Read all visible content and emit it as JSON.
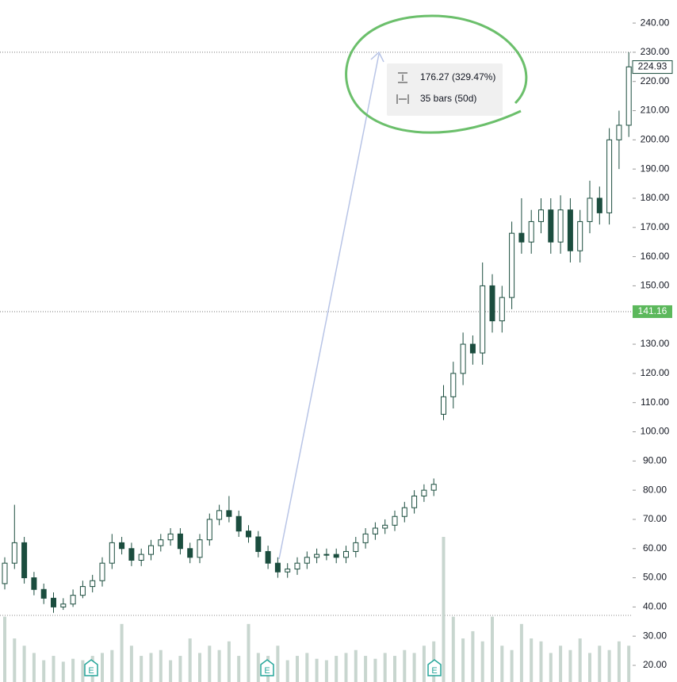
{
  "chart_data": {
    "type": "candlestick",
    "open": [
      48,
      55,
      62,
      50,
      46,
      43,
      40,
      41,
      44,
      47,
      49,
      55,
      62,
      60,
      56,
      58,
      61,
      63,
      65,
      60,
      57,
      63,
      70,
      73,
      71,
      66,
      64,
      59,
      55,
      52,
      53,
      55,
      57,
      58,
      58,
      57,
      59,
      62,
      65,
      67,
      68,
      71,
      74,
      78,
      80,
      106,
      112,
      120,
      130,
      127,
      150,
      138,
      146,
      168,
      165,
      172,
      176,
      165,
      176,
      162,
      172,
      180,
      175,
      200,
      205
    ],
    "high": [
      57,
      75,
      64,
      52,
      48,
      45,
      43,
      46,
      49,
      51,
      57,
      65,
      64,
      62,
      60,
      63,
      65,
      67,
      67,
      62,
      65,
      72,
      75,
      78,
      73,
      68,
      66,
      61,
      57,
      55,
      57,
      59,
      60,
      60,
      60,
      61,
      64,
      67,
      69,
      70,
      73,
      76,
      80,
      82,
      84,
      116,
      124,
      134,
      133,
      158,
      154,
      150,
      172,
      180,
      176,
      180,
      180,
      181,
      180,
      176,
      186,
      184,
      204,
      210,
      230
    ],
    "low": [
      46,
      53,
      48,
      44,
      41,
      38,
      39,
      40,
      43,
      45,
      47,
      53,
      58,
      54,
      54,
      56,
      59,
      61,
      58,
      55,
      55,
      61,
      68,
      69,
      64,
      62,
      57,
      53,
      50,
      50,
      51,
      53,
      55,
      56,
      55,
      55,
      57,
      60,
      63,
      65,
      66,
      69,
      72,
      76,
      78,
      104,
      108,
      116,
      123,
      123,
      134,
      134,
      142,
      161,
      161,
      168,
      161,
      161,
      158,
      158,
      168,
      171,
      171,
      190,
      201
    ],
    "close": [
      55,
      62,
      50,
      46,
      43,
      40,
      41,
      44,
      47,
      49,
      55,
      62,
      60,
      56,
      58,
      61,
      63,
      65,
      60,
      57,
      63,
      70,
      73,
      71,
      66,
      64,
      59,
      55,
      52,
      53,
      55,
      57,
      58,
      58,
      57,
      59,
      62,
      65,
      67,
      68,
      71,
      74,
      78,
      80,
      82,
      112,
      120,
      130,
      127,
      150,
      138,
      146,
      168,
      165,
      172,
      176,
      165,
      176,
      162,
      172,
      180,
      175,
      200,
      205,
      225
    ],
    "volume": [
      45,
      30,
      25,
      20,
      15,
      18,
      14,
      16,
      15,
      18,
      20,
      22,
      40,
      25,
      18,
      20,
      22,
      15,
      18,
      30,
      20,
      25,
      22,
      28,
      18,
      40,
      20,
      18,
      25,
      15,
      18,
      20,
      16,
      15,
      18,
      20,
      22,
      18,
      16,
      20,
      18,
      22,
      20,
      25,
      28,
      100,
      45,
      30,
      35,
      28,
      45,
      25,
      22,
      40,
      30,
      28,
      20,
      25,
      22,
      30,
      20,
      25,
      22,
      28,
      25
    ],
    "ylim": [
      14.3,
      247.9
    ],
    "yticks": [
      {
        "value": 20,
        "label": "20.00"
      },
      {
        "value": 30,
        "label": "30.00"
      },
      {
        "value": 40,
        "label": "40.00"
      },
      {
        "value": 50,
        "label": "50.00"
      },
      {
        "value": 60,
        "label": "60.00"
      },
      {
        "value": 70,
        "label": "70.00"
      },
      {
        "value": 80,
        "label": "80.00"
      },
      {
        "value": 90,
        "label": "90.00"
      },
      {
        "value": 100,
        "label": "100.00"
      },
      {
        "value": 110,
        "label": "110.00"
      },
      {
        "value": 120,
        "label": "120.00"
      },
      {
        "value": 130,
        "label": "130.00"
      },
      {
        "value": 140,
        "label": "140.00"
      },
      {
        "value": 150,
        "label": "150.00"
      },
      {
        "value": 160,
        "label": "160.00"
      },
      {
        "value": 170,
        "label": "170.00"
      },
      {
        "value": 180,
        "label": "180.00"
      },
      {
        "value": 190,
        "label": "190.00"
      },
      {
        "value": 200,
        "label": "200.00"
      },
      {
        "value": 210,
        "label": "210.00"
      },
      {
        "value": 220,
        "label": "220.00"
      },
      {
        "value": 230,
        "label": "230.00"
      },
      {
        "value": 240,
        "label": "240.00"
      }
    ],
    "high_line": 230,
    "last_price": 224.93,
    "marker_price": 141.16,
    "measure": {
      "change": "176.27 (329.47%)",
      "range": "35 bars (50d)"
    },
    "earnings": [
      "E",
      "E",
      "E"
    ]
  }
}
